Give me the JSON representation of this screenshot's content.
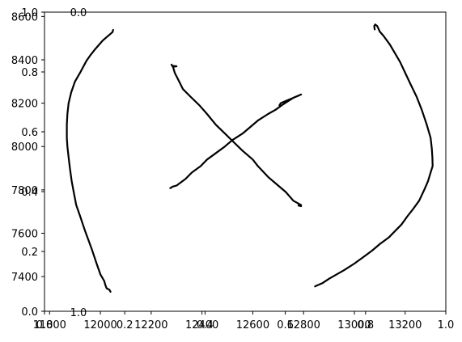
{
  "chart_data": {
    "type": "line",
    "title": "",
    "xlabel": "",
    "ylabel": "",
    "xlim": [
      11780,
      13360
    ],
    "ylim": [
      7240,
      8620
    ],
    "grid": false,
    "x_ticks": [
      {
        "value": 11800,
        "label": "11800"
      },
      {
        "value": 12000,
        "label": "12000"
      },
      {
        "value": 12200,
        "label": "12200"
      },
      {
        "value": 12400,
        "label": "12400"
      },
      {
        "value": 12600,
        "label": "12600"
      },
      {
        "value": 12800,
        "label": "12800"
      },
      {
        "value": 13000,
        "label": "13000"
      },
      {
        "value": 13200,
        "label": "13200"
      }
    ],
    "y_ticks": [
      {
        "value": 7400,
        "label": "7400"
      },
      {
        "value": 7600,
        "label": "7600"
      },
      {
        "value": 7800,
        "label": "7800"
      },
      {
        "value": 8000,
        "label": "8000"
      },
      {
        "value": 8200,
        "label": "8200"
      },
      {
        "value": 8400,
        "label": "8400"
      },
      {
        "value": 8600,
        "label": "8600"
      }
    ],
    "overlay_x_ticks": [
      "0.0",
      "0.2",
      "0.4",
      "0.6",
      "0.8",
      "1.0"
    ],
    "overlay_y_ticks": [
      "0.0",
      "0.2",
      "0.4",
      "0.6",
      "0.8",
      "1.0"
    ],
    "stray_labels": [
      "0.0",
      "1.0"
    ],
    "series": [
      {
        "color": "#000000",
        "points": [
          [
            12050,
            8538
          ],
          [
            12048,
            8528
          ],
          [
            12040,
            8520
          ],
          [
            12010,
            8490
          ],
          [
            11980,
            8450
          ],
          [
            11960,
            8420
          ],
          [
            11945,
            8395
          ],
          [
            11920,
            8340
          ],
          [
            11900,
            8300
          ],
          [
            11885,
            8250
          ],
          [
            11875,
            8200
          ],
          [
            11870,
            8150
          ],
          [
            11868,
            8100
          ],
          [
            11868,
            8040
          ],
          [
            11870,
            8000
          ],
          [
            11875,
            7950
          ],
          [
            11880,
            7900
          ],
          [
            11887,
            7840
          ],
          [
            11895,
            7790
          ],
          [
            11905,
            7730
          ],
          [
            11920,
            7680
          ],
          [
            11940,
            7610
          ],
          [
            11965,
            7530
          ],
          [
            11985,
            7460
          ],
          [
            12000,
            7410
          ],
          [
            12015,
            7380
          ],
          [
            12020,
            7360
          ],
          [
            12025,
            7345
          ],
          [
            12035,
            7340
          ],
          [
            12040,
            7330
          ]
        ]
      },
      {
        "color": "#000000",
        "points": [
          [
            12280,
            8378
          ],
          [
            12285,
            8368
          ],
          [
            12300,
            8370
          ],
          [
            12285,
            8372
          ],
          [
            12293,
            8340
          ],
          [
            12310,
            8300
          ],
          [
            12325,
            8265
          ],
          [
            12355,
            8230
          ],
          [
            12390,
            8190
          ],
          [
            12420,
            8150
          ],
          [
            12455,
            8100
          ],
          [
            12490,
            8060
          ],
          [
            12525,
            8020
          ],
          [
            12560,
            7980
          ],
          [
            12600,
            7940
          ],
          [
            12620,
            7910
          ],
          [
            12660,
            7860
          ],
          [
            12700,
            7820
          ],
          [
            12730,
            7790
          ],
          [
            12760,
            7750
          ],
          [
            12790,
            7730
          ],
          [
            12790,
            7725
          ],
          [
            12780,
            7728
          ]
        ]
      },
      {
        "color": "#000000",
        "points": [
          [
            12275,
            7808
          ],
          [
            12285,
            7815
          ],
          [
            12300,
            7820
          ],
          [
            12335,
            7850
          ],
          [
            12360,
            7880
          ],
          [
            12395,
            7910
          ],
          [
            12420,
            7940
          ],
          [
            12455,
            7970
          ],
          [
            12490,
            8000
          ],
          [
            12520,
            8030
          ],
          [
            12560,
            8060
          ],
          [
            12590,
            8090
          ],
          [
            12620,
            8120
          ],
          [
            12660,
            8150
          ],
          [
            12690,
            8170
          ],
          [
            12720,
            8195
          ],
          [
            12760,
            8225
          ],
          [
            12790,
            8240
          ],
          [
            12775,
            8232
          ],
          [
            12730,
            8210
          ],
          [
            12710,
            8200
          ],
          [
            12705,
            8190
          ]
        ]
      },
      {
        "color": "#000000",
        "points": [
          [
            13080,
            8540
          ],
          [
            13078,
            8556
          ],
          [
            13082,
            8563
          ],
          [
            13090,
            8556
          ],
          [
            13100,
            8530
          ],
          [
            13115,
            8510
          ],
          [
            13140,
            8470
          ],
          [
            13160,
            8430
          ],
          [
            13180,
            8390
          ],
          [
            13200,
            8340
          ],
          [
            13220,
            8290
          ],
          [
            13245,
            8230
          ],
          [
            13265,
            8170
          ],
          [
            13285,
            8100
          ],
          [
            13300,
            8040
          ],
          [
            13305,
            7990
          ],
          [
            13307,
            7950
          ],
          [
            13308,
            7910
          ],
          [
            13300,
            7880
          ],
          [
            13290,
            7840
          ],
          [
            13275,
            7800
          ],
          [
            13255,
            7750
          ],
          [
            13230,
            7710
          ],
          [
            13210,
            7680
          ],
          [
            13185,
            7640
          ],
          [
            13160,
            7610
          ],
          [
            13135,
            7580
          ],
          [
            13100,
            7550
          ],
          [
            13070,
            7520
          ],
          [
            13035,
            7490
          ],
          [
            13000,
            7460
          ],
          [
            12960,
            7430
          ],
          [
            12930,
            7410
          ],
          [
            12900,
            7390
          ],
          [
            12875,
            7370
          ],
          [
            12855,
            7360
          ],
          [
            12845,
            7355
          ]
        ]
      }
    ]
  }
}
